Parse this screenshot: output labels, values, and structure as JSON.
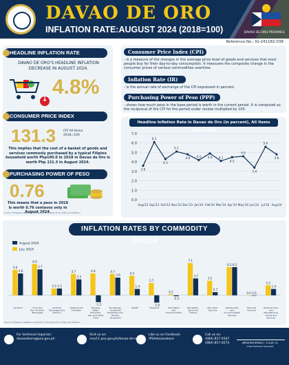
{
  "header": {
    "title": "DAVAO DE ORO",
    "subtitle": "INFLATION RATE:AUGUST 2024 (2018=100)",
    "pso_caption": "DAVAO DE ORO PROVINCE"
  },
  "reference": "Reference No.: IG-241182-038",
  "headline": {
    "label": "HEADLINE INFLATION RATE",
    "description": "DAVAO DE ORO'S HEADLINE INFLATION DECREASE IN  AUGUST 2024.",
    "value": "4.8%"
  },
  "cpi": {
    "label": "CONSUMER PRICE INDEX",
    "value": "131.3",
    "side_label": "CPI All Items\n2018=100",
    "description": "This implies that the cost of a basket of goods and services commonly purchased by a typical Filipino household worth Php100.0 in 2018 in Davao de Oro is worth Php 131.3 in August 2024."
  },
  "ppp": {
    "label": "PURCHASING POWER OF PESO",
    "value": "0.76",
    "description": "This means that a peso in 2018 is worth 0.76 centavos only in August 2024."
  },
  "source_left": "Source: Philippine Statistics Authority, Consumer Price Index and Inflation",
  "definitions": [
    {
      "title": "Consumer Price Index (CPI)",
      "text": "- is a measure of the changes in the average price level of goods and services that most people buy for their day-to-day consumption. It measures the composite change in the consumer prices of various commodities overtime."
    },
    {
      "title": "Inflation Rate (IR)",
      "text": "- is the annual rate of exchange of the CPI expressed in percent."
    },
    {
      "title": "Purchasing Power of Peso (PPP)",
      "text": "- shows how much peso in the base period is worth in the current period. It is computed as the reciprocal of the CPI for the period under review multiplied by 100."
    }
  ],
  "colors": {
    "navy": "#0f2f57",
    "gold": "#d7b24a",
    "red": "#d61f26",
    "line": "#0f2f57",
    "bar_aug": "#0f2f57",
    "bar_jul": "#f5c518"
  },
  "chart_data": [
    {
      "type": "line",
      "title": "Headline Inflation Rate in Davao de Oro (in percent), All Items (2018=100)",
      "categories": [
        "Aug'23",
        "Sep'23",
        "Oct'23",
        "Nov'23",
        "Dec'23",
        "Jan'24",
        "Feb'24",
        "Mar'24",
        "Apr'24",
        "May'24",
        "Jun'24",
        "Jul'24",
        "Aug'24"
      ],
      "values": [
        3.6,
        6.1,
        4.3,
        5.1,
        4.8,
        4.2,
        4.9,
        4.1,
        4.5,
        4.6,
        3.4,
        5.6,
        4.8
      ],
      "ylim": [
        0,
        7
      ],
      "yticks": [
        "0.0",
        "1.0",
        "2.0",
        "3.0",
        "4.0",
        "5.0",
        "6.0",
        "7.0"
      ],
      "grid": true
    },
    {
      "type": "bar",
      "title": "INFLATION RATES BY COMMODITY GROUP",
      "legend": "top-left",
      "categories": [
        "All Items",
        "Food and Non-Alcoholic Beverages",
        "Alcoholic Beverages and Tobacco",
        "Clothing and Footwear",
        "Housing, Water, Electricity, Gas, and Other Fuels",
        "Furnishings, Household Equipment and Routine Household Maintenance",
        "Health",
        "Transport",
        "Information and Communication",
        "Recreation, Sport and Culture",
        "Education Services",
        "Restaurants and Accommodation Services",
        "Financial Services",
        "Personal Care, and Miscellaneous Goods and Services"
      ],
      "series": [
        {
          "name": "August 2024",
          "values": [
            4.8,
            5.7,
            1.5,
            3.5,
            -1.5,
            3.9,
            1.4,
            -1.6,
            -0.2,
            3.7,
            0.7,
            6.2,
            0.0,
            1.4
          ]
        },
        {
          "name": "July 2024",
          "values": [
            5.6,
            6.9,
            1.5,
            4.7,
            4.8,
            4.7,
            4.3,
            2.7,
            0.2,
            7.1,
            3.2,
            6.2,
            0.0,
            2.2
          ]
        }
      ],
      "ylim": [
        -2,
        8
      ]
    }
  ],
  "footer": {
    "technical_label": "For technical inquiries:",
    "technical_email": "davaodeoro@psa.gov.ph",
    "visit_label": "Visit us on:",
    "visit_url": "rsso11.psa.gov.ph/davao-de-oro",
    "fb_label": "Like us on Facebook:",
    "fb_handle": "/PSAdavaodeoro",
    "call_label": "Call us on:",
    "call_numbers": "(084) 817-0347\n(084) 817-0273",
    "signatory": "ABRAHAM BRIAN C. CULAY, III,",
    "signatory_role": "Chief Statistical Specialist"
  }
}
